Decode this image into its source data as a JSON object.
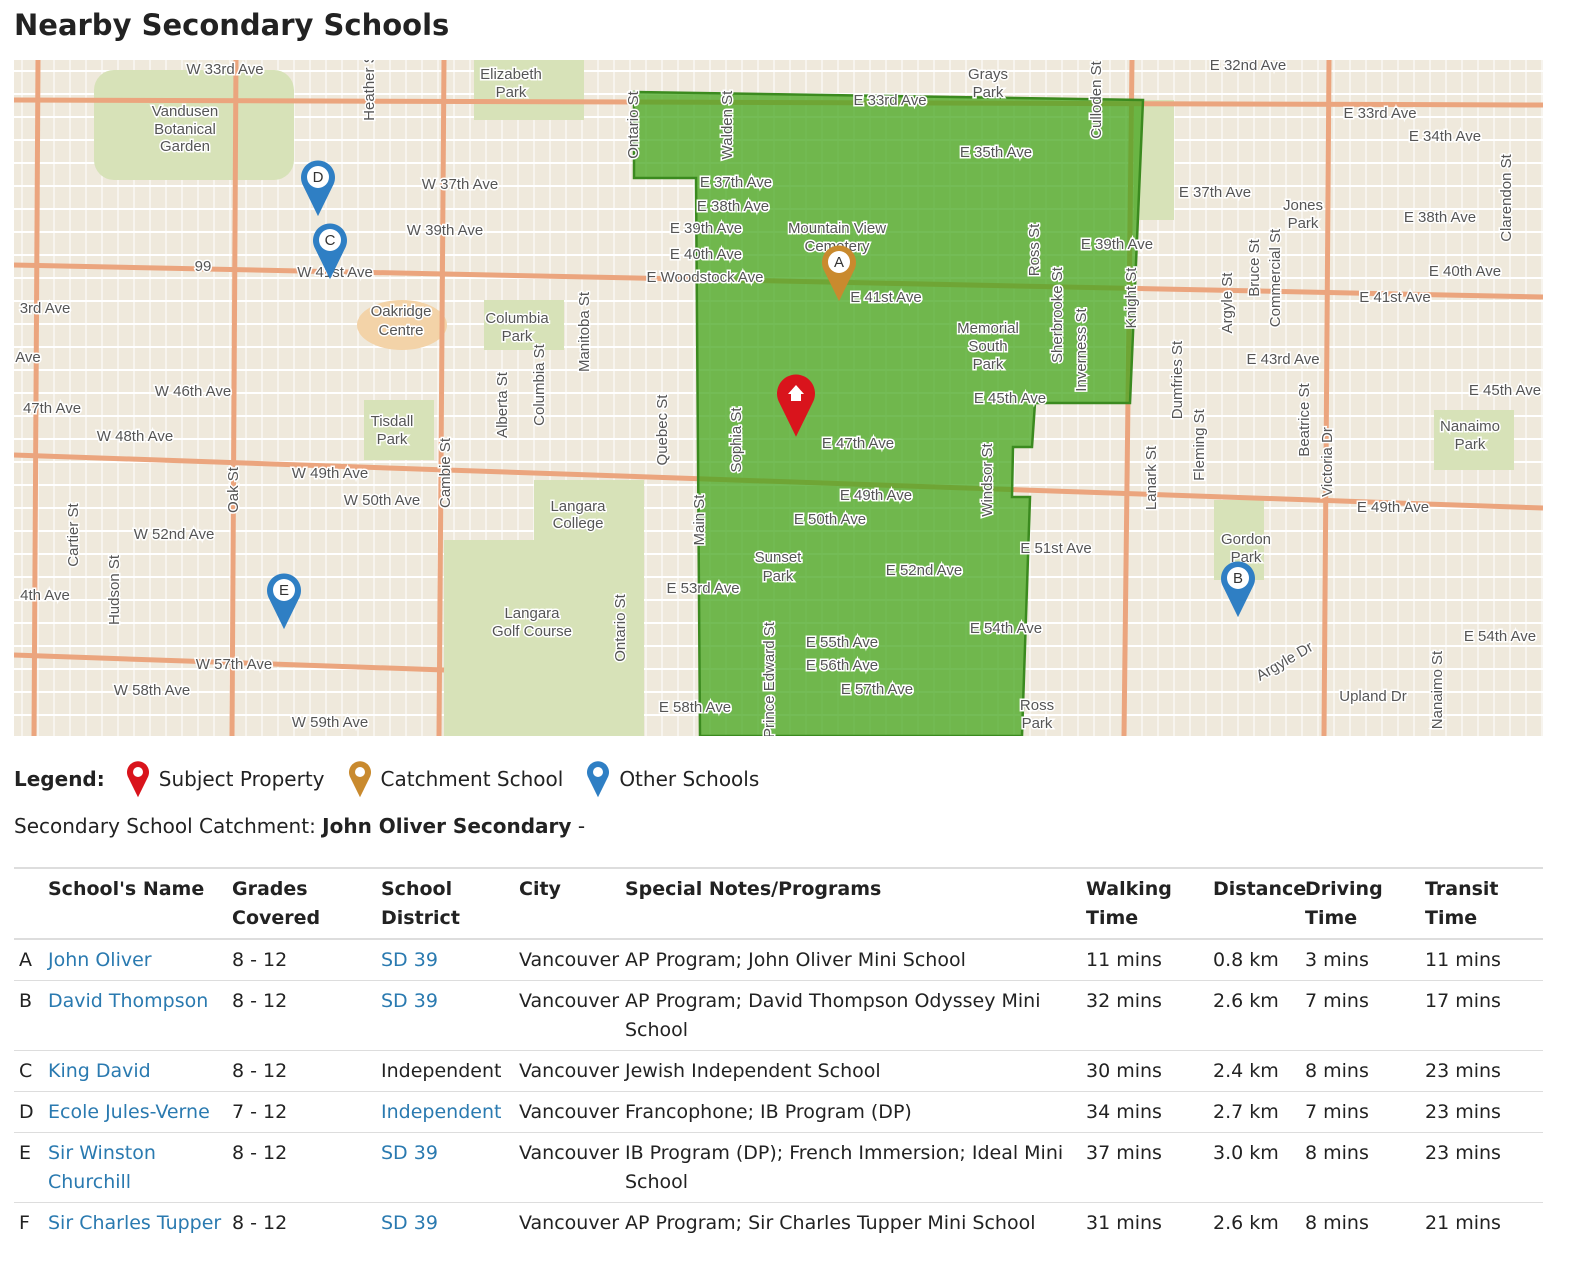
{
  "header": {
    "title": "Nearby Secondary Schools"
  },
  "map": {
    "labels": [
      "W 33rd Ave",
      "Vandusen",
      "Botanical",
      "Garden",
      "Elizabeth",
      "Park",
      "E 33rd Ave",
      "Grays",
      "Park",
      "E 32nd Ave",
      "E 33rd Ave",
      "E 34th Ave",
      "E 35th Ave",
      "W 37th Ave",
      "E 37th Ave",
      "E 38th Ave",
      "E 39th Ave",
      "E 40th Ave",
      "E Woodstock Ave",
      "Mountain View",
      "Cemetery",
      "W 39th Ave",
      "W 41st Ave",
      "E 41st Ave",
      "E 37th Ave",
      "E 38th Ave",
      "Jones",
      "Park",
      "E 39th Ave",
      "E 40th Ave",
      "E 41st Ave",
      "3rd Ave",
      "Oakridge",
      "Centre",
      "Columbia",
      "Park",
      "Memorial",
      "South",
      "Park",
      "E 43rd Ave",
      "Ave",
      "W 46th Ave",
      "47th Ave",
      "E 45th Ave",
      "E 45th Ave",
      "Nanaimo",
      "Park",
      "Tisdall",
      "Park",
      "W 48th Ave",
      "E 47th Ave",
      "W 49th Ave",
      "W 50th Ave",
      "E 49th Ave",
      "E 49th Ave",
      "Langara",
      "College",
      "E 50th Ave",
      "W 52nd Ave",
      "E 51st Ave",
      "Gordon",
      "Park",
      "Sunset",
      "Park",
      "E 52nd Ave",
      "E 53rd Ave",
      "4th Ave",
      "Langara",
      "Golf Course",
      "E 54th Ave",
      "E 54th Ave",
      "E 55th Ave",
      "E 56th Ave",
      "E 57th Ave",
      "W 57th Ave",
      "W 58th Ave",
      "Upland Dr",
      "E 58th Ave",
      "W 59th Ave",
      "Ross",
      "Park",
      "Argyle Dr",
      "99",
      "Heather St",
      "Ontario St",
      "Walden St",
      "Culloden St",
      "Ross St",
      "Sherbrooke St",
      "Inverness St",
      "Knight St",
      "Dumfries St",
      "Argyle St",
      "Bruce St",
      "Commercial St",
      "Clarendon St",
      "Manitoba St",
      "Alberta St",
      "Columbia St",
      "Quebec St",
      "Sophia St",
      "Cambie St",
      "Oak St",
      "Main St",
      "Windsor St",
      "Lanark St",
      "Fleming St",
      "Beatrice St",
      "Victoria Dr",
      "Cartier St",
      "Hudson St",
      "Ontario St",
      "Prince Edward St",
      "Nanaimo St"
    ],
    "markers": [
      "A",
      "B",
      "C",
      "D",
      "E"
    ]
  },
  "legend": {
    "title": "Legend:",
    "items": [
      "Subject Property",
      "Catchment School",
      "Other Schools"
    ]
  },
  "catchment": {
    "label": "Secondary School Catchment:",
    "value": "John Oliver Secondary",
    "suffix": "-"
  },
  "table": {
    "headers": [
      "",
      "School's Name",
      "Grades Covered",
      "School District",
      "City",
      "Special Notes/Programs",
      "Walking Time",
      "Distance",
      "Driving Time",
      "Transit Time"
    ],
    "rows": [
      [
        "A",
        "John Oliver",
        "8 - 12",
        "SD 39",
        "Vancouver",
        "AP Program; John Oliver Mini School",
        "11 mins",
        "0.8 km",
        "3 mins",
        "11 mins"
      ],
      [
        "B",
        "David Thompson",
        "8 - 12",
        "SD 39",
        "Vancouver",
        "AP Program; David Thompson Odyssey Mini School",
        "32 mins",
        "2.6 km",
        "7 mins",
        "17 mins"
      ],
      [
        "C",
        "King David",
        "8 - 12",
        "Independent",
        "Vancouver",
        "Jewish Independent School",
        "30 mins",
        "2.4 km",
        "8 mins",
        "23 mins"
      ],
      [
        "D",
        "Ecole Jules-Verne",
        "7 - 12",
        "Independent",
        "Vancouver",
        "Francophone; IB Program (DP)",
        "34 mins",
        "2.7 km",
        "7 mins",
        "23 mins"
      ],
      [
        "E",
        "Sir Winston Churchill",
        "8 - 12",
        "SD 39",
        "Vancouver",
        "IB Program (DP); French Immersion; Ideal Mini School",
        "37 mins",
        "3.0 km",
        "8 mins",
        "23 mins"
      ],
      [
        "F",
        "Sir Charles Tupper",
        "8 - 12",
        "SD 39",
        "Vancouver",
        "AP Program; Sir Charles Tupper Mini School",
        "31 mins",
        "2.6 km",
        "8 mins",
        "21 mins"
      ]
    ]
  }
}
